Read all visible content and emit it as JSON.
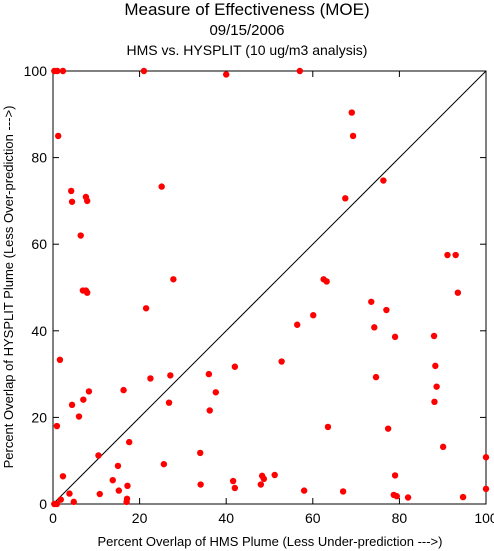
{
  "chart_data": {
    "type": "scatter",
    "title": "Measure of Effectiveness (MOE)",
    "subtitle": "09/15/2006",
    "subtitle2": "HMS vs. HYSPLIT  (10 ug/m3 analysis)",
    "xlabel": "Percent Overlap of HMS Plume (Less Under-prediction --->)",
    "ylabel": "Percent Overlap of HYSPLIT Plume (Less Over-prediction --->)",
    "xlim": [
      0,
      100
    ],
    "ylim": [
      0,
      100
    ],
    "xticks": [
      "0",
      "20",
      "40",
      "60",
      "80",
      "100"
    ],
    "yticks": [
      "0",
      "20",
      "40",
      "60",
      "80",
      "100"
    ],
    "grid": false,
    "reference_line": "y = x",
    "point_color": "#ff0000",
    "line_color": "#000000",
    "points": [
      [
        0.3,
        100
      ],
      [
        1.0,
        100
      ],
      [
        2.3,
        100
      ],
      [
        21.0,
        100
      ],
      [
        40.0,
        99.2
      ],
      [
        57.0,
        100
      ],
      [
        69.0,
        90.4
      ],
      [
        69.3,
        85.0
      ],
      [
        1.2,
        85.0
      ],
      [
        76.3,
        74.7
      ],
      [
        4.2,
        72.3
      ],
      [
        7.6,
        70.9
      ],
      [
        7.9,
        70.0
      ],
      [
        4.4,
        69.8
      ],
      [
        25.1,
        73.3
      ],
      [
        67.5,
        70.6
      ],
      [
        6.4,
        62.0
      ],
      [
        91.1,
        57.5
      ],
      [
        93.0,
        57.5
      ],
      [
        6.9,
        49.3
      ],
      [
        7.6,
        49.3
      ],
      [
        7.9,
        48.8
      ],
      [
        93.5,
        48.8
      ],
      [
        27.8,
        51.9
      ],
      [
        62.5,
        51.9
      ],
      [
        63.2,
        51.4
      ],
      [
        21.5,
        45.2
      ],
      [
        73.5,
        46.7
      ],
      [
        77.0,
        44.8
      ],
      [
        60.1,
        43.6
      ],
      [
        56.4,
        41.4
      ],
      [
        74.2,
        40.8
      ],
      [
        88.0,
        38.8
      ],
      [
        79.0,
        38.6
      ],
      [
        1.6,
        33.3
      ],
      [
        52.8,
        32.9
      ],
      [
        88.3,
        31.9
      ],
      [
        42.0,
        31.7
      ],
      [
        36.0,
        30.0
      ],
      [
        27.1,
        29.7
      ],
      [
        22.5,
        29.0
      ],
      [
        74.6,
        29.3
      ],
      [
        88.6,
        27.1
      ],
      [
        16.3,
        26.3
      ],
      [
        8.3,
        26.0
      ],
      [
        37.6,
        25.8
      ],
      [
        7.0,
        24.1
      ],
      [
        26.8,
        23.4
      ],
      [
        88.1,
        23.6
      ],
      [
        4.4,
        22.9
      ],
      [
        36.2,
        21.6
      ],
      [
        0.9,
        18.0
      ],
      [
        6.0,
        20.2
      ],
      [
        63.5,
        17.8
      ],
      [
        77.4,
        17.4
      ],
      [
        17.6,
        14.3
      ],
      [
        90.1,
        13.2
      ],
      [
        34.0,
        11.8
      ],
      [
        10.5,
        11.2
      ],
      [
        100,
        10.8
      ],
      [
        15.0,
        8.8
      ],
      [
        25.6,
        9.2
      ],
      [
        13.8,
        5.5
      ],
      [
        2.3,
        6.4
      ],
      [
        41.6,
        5.3
      ],
      [
        48.3,
        6.5
      ],
      [
        48.7,
        5.8
      ],
      [
        51.2,
        6.7
      ],
      [
        79.0,
        6.6
      ],
      [
        17.2,
        4.2
      ],
      [
        34.1,
        4.5
      ],
      [
        42.0,
        3.7
      ],
      [
        48.0,
        4.5
      ],
      [
        15.2,
        3.1
      ],
      [
        58.0,
        3.1
      ],
      [
        67.0,
        2.9
      ],
      [
        100,
        3.5
      ],
      [
        3.8,
        2.4
      ],
      [
        10.8,
        2.3
      ],
      [
        78.7,
        2.1
      ],
      [
        79.4,
        1.8
      ],
      [
        82.0,
        1.5
      ],
      [
        94.7,
        1.6
      ],
      [
        1.8,
        1.0
      ],
      [
        4.8,
        0.5
      ],
      [
        17.0,
        0.5
      ],
      [
        17.1,
        1.2
      ],
      [
        0.3,
        0.0
      ],
      [
        0.9,
        0.0
      ]
    ]
  }
}
